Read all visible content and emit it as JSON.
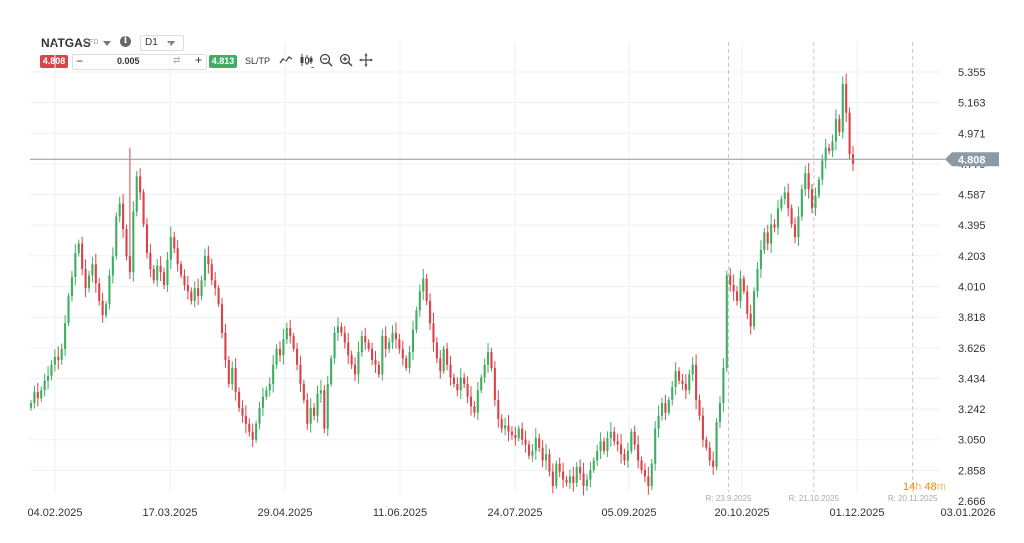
{
  "toolbar": {
    "symbol": "NATGAS",
    "symbol_type": "CFD",
    "info_icon": "info-icon",
    "timeframe": "D1",
    "sell_price": "4.808",
    "buy_price": "4.813",
    "quantity": "0.005",
    "minus": "−",
    "plus": "+",
    "sl_tp": "SL/TP",
    "icons": [
      "line-chart-icon",
      "candlestick-icon",
      "zoom-out-icon",
      "zoom-in-icon",
      "crosshair-move-icon"
    ]
  },
  "current_price_label": "4.808",
  "countdown": {
    "hours": "14",
    "h": "h",
    "minutes": "48",
    "m": "m"
  },
  "colors": {
    "up": "#3fae62",
    "down": "#d9444b",
    "price_line": "#8a9aa6",
    "price_tag": "#8a9aa6",
    "grid": "#eef0f2"
  },
  "chart_data": {
    "type": "candlestick",
    "title": "",
    "xlabel": "",
    "ylabel": "",
    "ylim": [
      2.666,
      5.5
    ],
    "y_ticks": [
      "5.355",
      "5.163",
      "4.971",
      "4.779",
      "4.587",
      "4.395",
      "4.203",
      "4.010",
      "3.818",
      "3.626",
      "3.434",
      "3.242",
      "3.050",
      "2.858",
      "2.666"
    ],
    "x_ticks": [
      "04.02.2025",
      "17.03.2025",
      "29.04.2025",
      "11.06.2025",
      "24.07.2025",
      "05.09.2025",
      "20.10.2025",
      "01.12.2025",
      "03.01.2026"
    ],
    "rollover_markers": [
      {
        "label": "R: 23.9.2025",
        "after_candle": 204
      },
      {
        "label": "R: 21.10.2025",
        "after_candle": 229
      },
      {
        "label": "R: 20.11.2025",
        "after_candle": 258
      }
    ],
    "current_price": 4.808,
    "grid": true,
    "closes": [
      3.28,
      3.35,
      3.31,
      3.36,
      3.42,
      3.45,
      3.52,
      3.57,
      3.55,
      3.62,
      3.78,
      3.95,
      4.07,
      4.22,
      4.28,
      4.12,
      4.0,
      4.08,
      4.15,
      4.03,
      3.92,
      3.83,
      3.9,
      4.08,
      4.2,
      4.45,
      4.53,
      4.37,
      4.2,
      4.1,
      4.48,
      4.7,
      4.6,
      4.4,
      4.22,
      4.12,
      4.05,
      4.14,
      4.1,
      4.02,
      4.18,
      4.32,
      4.25,
      4.15,
      4.08,
      4.02,
      3.98,
      3.92,
      4.0,
      3.95,
      4.05,
      4.2,
      4.15,
      4.05,
      4.0,
      3.9,
      3.72,
      3.55,
      3.4,
      3.5,
      3.35,
      3.25,
      3.2,
      3.15,
      3.1,
      3.05,
      3.15,
      3.25,
      3.32,
      3.36,
      3.4,
      3.52,
      3.62,
      3.58,
      3.68,
      3.75,
      3.7,
      3.62,
      3.52,
      3.4,
      3.3,
      3.15,
      3.25,
      3.2,
      3.34,
      3.36,
      3.12,
      3.4,
      3.56,
      3.72,
      3.76,
      3.72,
      3.66,
      3.58,
      3.52,
      3.46,
      3.6,
      3.7,
      3.66,
      3.62,
      3.55,
      3.52,
      3.46,
      3.7,
      3.62,
      3.66,
      3.72,
      3.68,
      3.62,
      3.56,
      3.5,
      3.6,
      3.74,
      3.86,
      3.98,
      4.06,
      3.92,
      3.78,
      3.66,
      3.56,
      3.48,
      3.62,
      3.52,
      3.44,
      3.4,
      3.36,
      3.44,
      3.4,
      3.32,
      3.26,
      3.22,
      3.36,
      3.44,
      3.52,
      3.6,
      3.5,
      3.3,
      3.18,
      3.12,
      3.14,
      3.1,
      3.08,
      3.06,
      3.12,
      3.05,
      3.02,
      2.95,
      2.98,
      3.06,
      3.0,
      2.92,
      2.96,
      2.85,
      2.76,
      2.9,
      2.85,
      2.8,
      2.78,
      2.82,
      2.78,
      2.88,
      2.84,
      2.76,
      2.8,
      2.86,
      2.92,
      2.98,
      3.04,
      2.98,
      3.06,
      3.1,
      3.04,
      3.02,
      2.96,
      2.92,
      2.98,
      3.1,
      3.02,
      2.92,
      2.86,
      2.82,
      2.76,
      2.9,
      3.12,
      3.2,
      3.28,
      3.22,
      3.3,
      3.38,
      3.48,
      3.42,
      3.4,
      3.36,
      3.46,
      3.52,
      3.3,
      3.2,
      3.05,
      3.0,
      2.92,
      2.88,
      3.16,
      3.28,
      3.5,
      4.08,
      4.02,
      3.98,
      3.92,
      4.06,
      3.98,
      3.84,
      3.76,
      3.98,
      4.12,
      4.24,
      4.35,
      4.28,
      4.4,
      4.38,
      4.5,
      4.56,
      4.6,
      4.5,
      4.4,
      4.32,
      4.45,
      4.62,
      4.72,
      4.62,
      4.5,
      4.58,
      4.68,
      4.8,
      4.88,
      4.86,
      4.92,
      5.06,
      4.98,
      5.28,
      5.1,
      4.84,
      4.78
    ]
  }
}
